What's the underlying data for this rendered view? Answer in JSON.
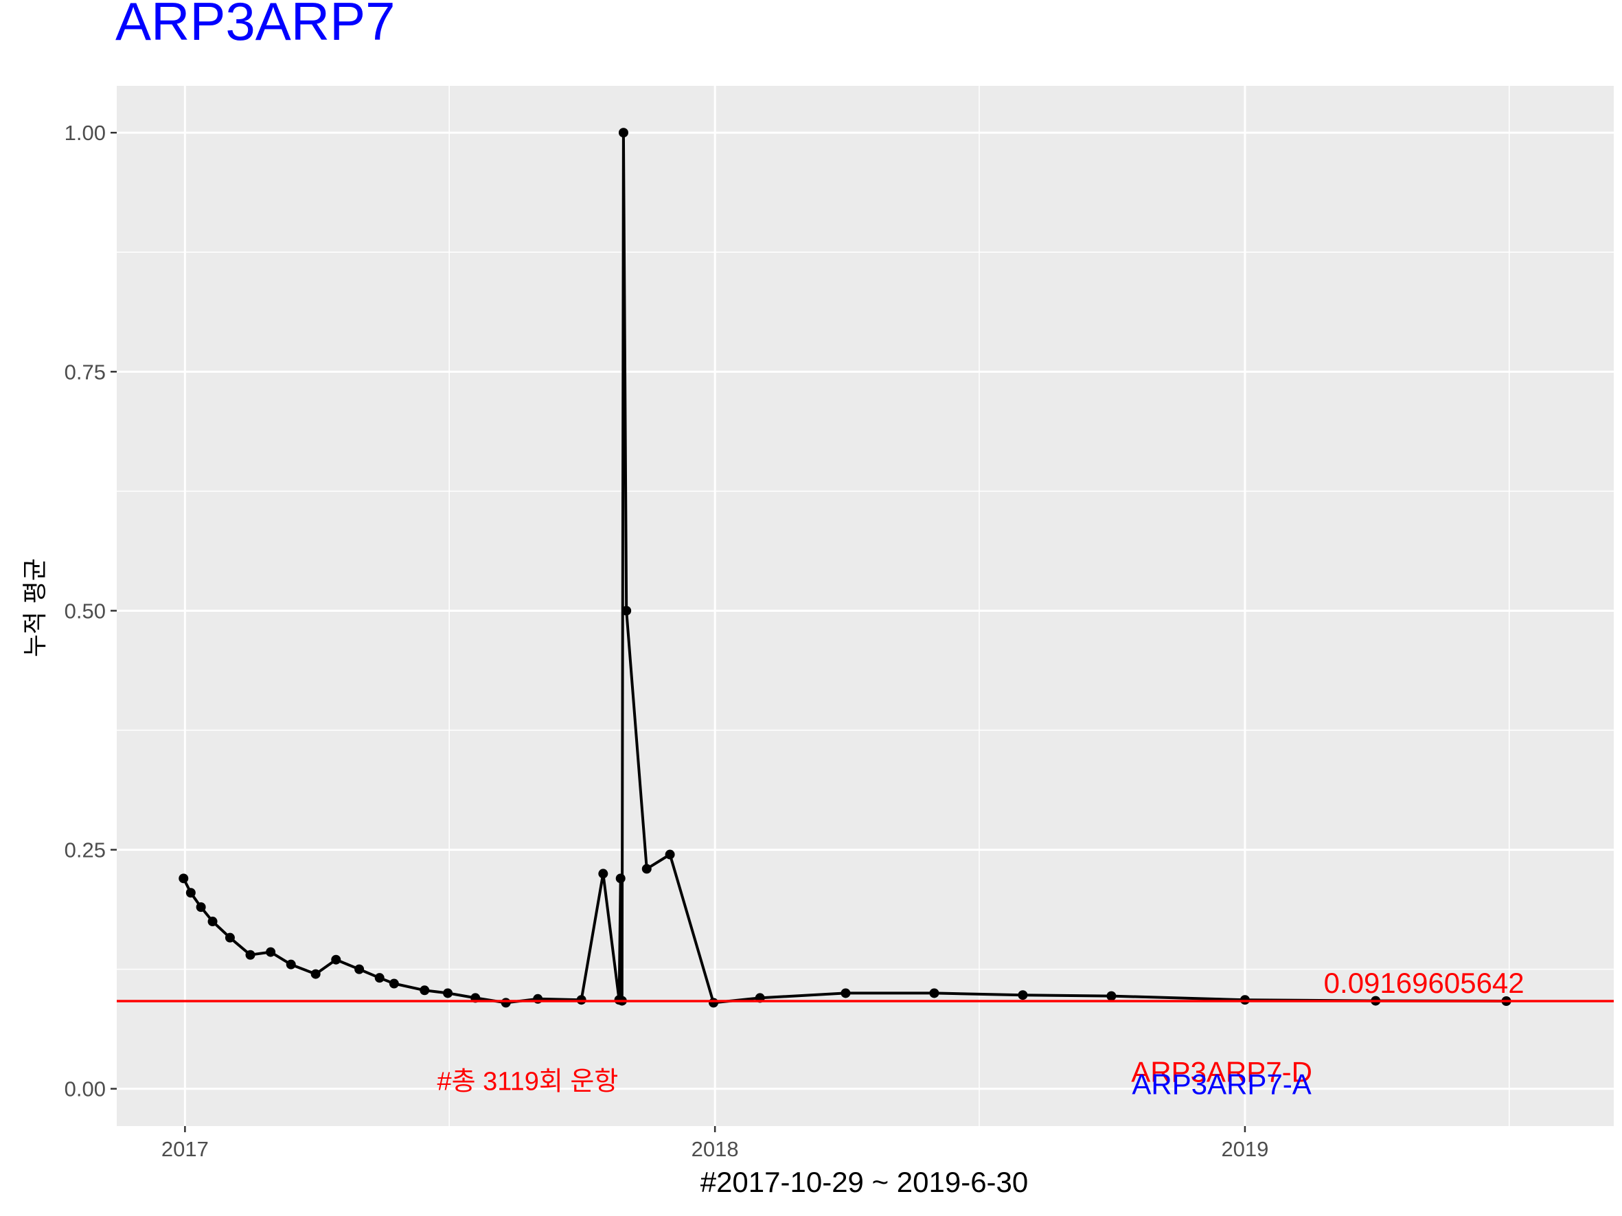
{
  "chart_data": {
    "type": "line",
    "title": "ARP3ARP7",
    "xlabel": "#2017-10-29 ~ 2019-6-30",
    "ylabel": "누적 평균",
    "x_axis": {
      "type": "date",
      "range": [
        "2016-11-15",
        "2019-09-12"
      ],
      "ticks": [
        "2017",
        "2018",
        "2019"
      ]
    },
    "ylim": [
      -0.039,
      1.049
    ],
    "yticks": [
      "0.00",
      "0.25",
      "0.50",
      "0.75",
      "1.00"
    ],
    "grid": true,
    "series": [
      {
        "x": [
          "2016-12-31",
          "2017-01-05",
          "2017-01-12",
          "2017-01-20",
          "2017-02-01",
          "2017-02-15",
          "2017-03-01",
          "2017-03-15",
          "2017-04-01",
          "2017-04-15",
          "2017-05-01",
          "2017-05-15",
          "2017-05-25",
          "2017-06-15",
          "2017-07-01",
          "2017-07-20",
          "2017-08-10",
          "2017-09-01",
          "2017-10-01",
          "2017-10-16",
          "2017-10-27",
          "2017-10-28",
          "2017-10-29",
          "2017-10-30",
          "2017-11-01",
          "2017-11-15",
          "2017-12-01",
          "2017-12-31",
          "2018-02-01",
          "2018-04-01",
          "2018-06-01",
          "2018-08-01",
          "2018-10-01",
          "2019-01-01",
          "2019-04-01",
          "2019-06-30"
        ],
        "y": [
          0.22,
          0.205,
          0.19,
          0.175,
          0.158,
          0.14,
          0.143,
          0.13,
          0.12,
          0.135,
          0.125,
          0.116,
          0.11,
          0.103,
          0.1,
          0.095,
          0.09,
          0.094,
          0.093,
          0.225,
          0.093,
          0.22,
          0.092,
          1.0,
          0.5,
          0.23,
          0.245,
          0.09,
          0.095,
          0.1,
          0.1,
          0.098,
          0.097,
          0.093,
          0.092,
          0.0917
        ]
      }
    ],
    "reference_line": {
      "y": 0.09169605642,
      "label": "0.09169605642",
      "color": "#ff0000"
    },
    "annotations": [
      {
        "text": "#총 3119회 운항",
        "color": "#ff0000"
      },
      {
        "text": "ARP3ARP7-D",
        "color": "#ff0000"
      },
      {
        "text": "ARP3ARP7-A",
        "color": "#0000ff"
      }
    ],
    "colors": {
      "title": "#0000ff",
      "series": "#000000",
      "panel": "#ebebeb",
      "grid": "#ffffff"
    }
  }
}
